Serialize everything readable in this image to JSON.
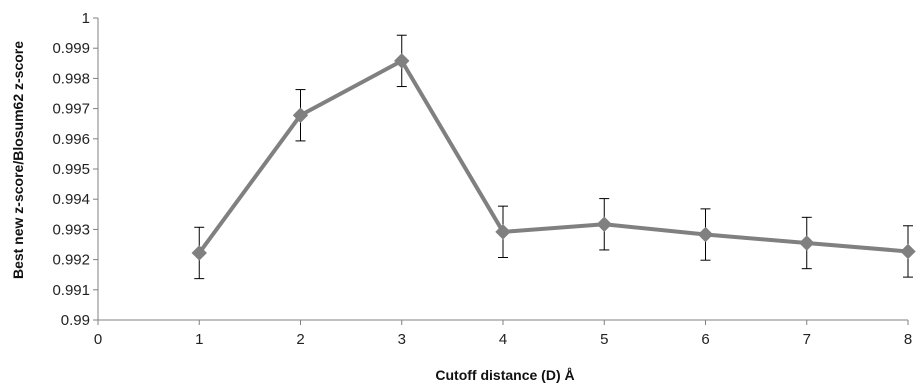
{
  "chart_data": {
    "type": "line",
    "title": "",
    "xlabel": "Cutoff distance (D) Å",
    "ylabel": "Best new z-score/Blosum62 z-score",
    "xlim": [
      0,
      8
    ],
    "ylim": [
      0.99,
      1.0
    ],
    "x_ticks": [
      "0",
      "1",
      "2",
      "3",
      "4",
      "5",
      "6",
      "7",
      "8"
    ],
    "y_ticks": [
      "0.99",
      "0.991",
      "0.992",
      "0.993",
      "0.994",
      "0.995",
      "0.996",
      "0.997",
      "0.998",
      "0.999",
      "1"
    ],
    "grid": false,
    "legend": "none",
    "series_color": "#808080",
    "errorbar_color": "#000000",
    "series": [
      {
        "x": [
          1,
          2,
          3,
          4,
          5,
          6,
          7,
          8
        ],
        "values": [
          0.99222,
          0.99678,
          0.99858,
          0.99292,
          0.99317,
          0.99283,
          0.99255,
          0.99227
        ],
        "error": [
          0.00085,
          0.00085,
          0.00085,
          0.00085,
          0.00085,
          0.00085,
          0.00085,
          0.00085
        ]
      }
    ]
  }
}
